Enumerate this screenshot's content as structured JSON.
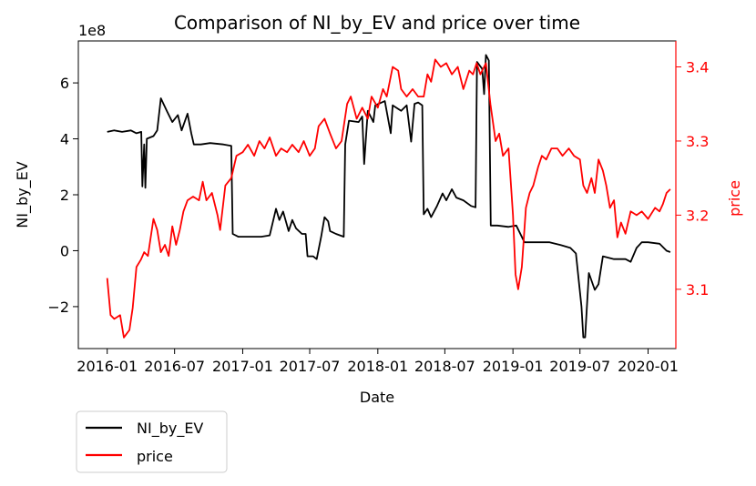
{
  "chart_data": {
    "type": "line",
    "title": "Comparison of NI_by_EV and price over time",
    "xlabel": "Date",
    "ylabel_left": "NI_by_EV",
    "ylabel_right": "price",
    "left_axis_offset_text": "1e8",
    "x_ticks": [
      "2016-01",
      "2016-07",
      "2017-01",
      "2017-07",
      "2018-01",
      "2018-07",
      "2019-01",
      "2019-07",
      "2020-01"
    ],
    "y_left_ticks": [
      "−2",
      "0",
      "2",
      "4",
      "6"
    ],
    "y_right_ticks": [
      "3.1",
      "3.2",
      "3.3",
      "3.4"
    ],
    "xlim": [
      "2015-10-15",
      "2020-03-16"
    ],
    "ylim_left": [
      -3.5,
      7.5
    ],
    "ylim_right": [
      3.02,
      3.435
    ],
    "right_axis_color": "#ff0000",
    "grid": false,
    "legend": {
      "placement": "below-left",
      "entries": [
        "NI_by_EV",
        "price"
      ]
    },
    "series": [
      {
        "name": "NI_by_EV",
        "axis": "left",
        "color": "#000000",
        "points": [
          [
            "2016-01-01",
            4.25
          ],
          [
            "2016-01-20",
            4.3
          ],
          [
            "2016-02-10",
            4.25
          ],
          [
            "2016-03-05",
            4.3
          ],
          [
            "2016-03-20",
            4.2
          ],
          [
            "2016-04-02",
            4.25
          ],
          [
            "2016-04-05",
            2.3
          ],
          [
            "2016-04-10",
            3.8
          ],
          [
            "2016-04-13",
            2.25
          ],
          [
            "2016-04-17",
            4.0
          ],
          [
            "2016-05-05",
            4.1
          ],
          [
            "2016-05-15",
            4.3
          ],
          [
            "2016-05-25",
            5.45
          ],
          [
            "2016-06-10",
            5.0
          ],
          [
            "2016-06-25",
            4.6
          ],
          [
            "2016-07-10",
            4.85
          ],
          [
            "2016-07-20",
            4.3
          ],
          [
            "2016-08-05",
            4.9
          ],
          [
            "2016-08-15",
            4.2
          ],
          [
            "2016-08-22",
            3.8
          ],
          [
            "2016-09-10",
            3.8
          ],
          [
            "2016-10-05",
            3.85
          ],
          [
            "2016-11-10",
            3.8
          ],
          [
            "2016-12-01",
            3.75
          ],
          [
            "2016-12-05",
            0.6
          ],
          [
            "2016-12-20",
            0.5
          ],
          [
            "2017-02-20",
            0.5
          ],
          [
            "2017-03-15",
            0.55
          ],
          [
            "2017-04-01",
            1.5
          ],
          [
            "2017-04-10",
            1.1
          ],
          [
            "2017-04-20",
            1.4
          ],
          [
            "2017-05-05",
            0.7
          ],
          [
            "2017-05-15",
            1.1
          ],
          [
            "2017-05-25",
            0.8
          ],
          [
            "2017-06-10",
            0.6
          ],
          [
            "2017-06-20",
            0.6
          ],
          [
            "2017-06-25",
            -0.2
          ],
          [
            "2017-07-10",
            -0.2
          ],
          [
            "2017-07-20",
            -0.3
          ],
          [
            "2017-08-01",
            0.5
          ],
          [
            "2017-08-10",
            1.2
          ],
          [
            "2017-08-20",
            1.05
          ],
          [
            "2017-08-25",
            0.7
          ],
          [
            "2017-09-10",
            0.6
          ],
          [
            "2017-10-01",
            0.5
          ],
          [
            "2017-10-05",
            3.8
          ],
          [
            "2017-10-15",
            4.65
          ],
          [
            "2017-11-10",
            4.6
          ],
          [
            "2017-11-20",
            4.8
          ],
          [
            "2017-11-25",
            3.1
          ],
          [
            "2017-12-05",
            5.0
          ],
          [
            "2017-12-20",
            4.6
          ],
          [
            "2017-12-25",
            5.2
          ],
          [
            "2018-01-20",
            5.35
          ],
          [
            "2018-02-05",
            4.2
          ],
          [
            "2018-02-10",
            5.2
          ],
          [
            "2018-03-05",
            5.0
          ],
          [
            "2018-03-20",
            5.2
          ],
          [
            "2018-04-01",
            3.9
          ],
          [
            "2018-04-10",
            5.25
          ],
          [
            "2018-04-20",
            5.3
          ],
          [
            "2018-05-01",
            5.2
          ],
          [
            "2018-05-05",
            1.3
          ],
          [
            "2018-05-15",
            1.5
          ],
          [
            "2018-05-25",
            1.2
          ],
          [
            "2018-06-10",
            1.6
          ],
          [
            "2018-06-25",
            2.05
          ],
          [
            "2018-07-05",
            1.8
          ],
          [
            "2018-07-20",
            2.2
          ],
          [
            "2018-08-01",
            1.9
          ],
          [
            "2018-08-20",
            1.8
          ],
          [
            "2018-09-10",
            1.6
          ],
          [
            "2018-09-22",
            1.55
          ],
          [
            "2018-09-26",
            6.75
          ],
          [
            "2018-10-10",
            6.5
          ],
          [
            "2018-10-15",
            5.6
          ],
          [
            "2018-10-20",
            7.0
          ],
          [
            "2018-10-28",
            6.8
          ],
          [
            "2018-11-02",
            0.9
          ],
          [
            "2018-11-20",
            0.9
          ],
          [
            "2018-12-20",
            0.85
          ],
          [
            "2019-01-10",
            0.9
          ],
          [
            "2019-02-01",
            0.3
          ],
          [
            "2019-03-15",
            0.3
          ],
          [
            "2019-04-10",
            0.3
          ],
          [
            "2019-05-10",
            0.2
          ],
          [
            "2019-06-05",
            0.1
          ],
          [
            "2019-06-20",
            -0.1
          ],
          [
            "2019-07-05",
            -2.0
          ],
          [
            "2019-07-10",
            -3.1
          ],
          [
            "2019-07-15",
            -3.1
          ],
          [
            "2019-07-25",
            -0.8
          ],
          [
            "2019-08-10",
            -1.4
          ],
          [
            "2019-08-20",
            -1.2
          ],
          [
            "2019-09-01",
            -0.2
          ],
          [
            "2019-10-01",
            -0.3
          ],
          [
            "2019-11-01",
            -0.3
          ],
          [
            "2019-11-15",
            -0.4
          ],
          [
            "2019-12-01",
            0.1
          ],
          [
            "2019-12-15",
            0.3
          ],
          [
            "2020-01-01",
            0.3
          ],
          [
            "2020-02-01",
            0.25
          ],
          [
            "2020-02-20",
            0.0
          ],
          [
            "2020-03-01",
            -0.05
          ]
        ]
      },
      {
        "name": "price",
        "axis": "right",
        "color": "#ff0000",
        "points": [
          [
            "2016-01-01",
            3.115
          ],
          [
            "2016-01-10",
            3.065
          ],
          [
            "2016-01-20",
            3.06
          ],
          [
            "2016-02-05",
            3.065
          ],
          [
            "2016-02-15",
            3.035
          ],
          [
            "2016-03-01",
            3.045
          ],
          [
            "2016-03-10",
            3.075
          ],
          [
            "2016-03-20",
            3.13
          ],
          [
            "2016-04-01",
            3.14
          ],
          [
            "2016-04-10",
            3.15
          ],
          [
            "2016-04-20",
            3.145
          ],
          [
            "2016-05-05",
            3.195
          ],
          [
            "2016-05-15",
            3.18
          ],
          [
            "2016-05-25",
            3.15
          ],
          [
            "2016-06-05",
            3.16
          ],
          [
            "2016-06-15",
            3.145
          ],
          [
            "2016-06-25",
            3.185
          ],
          [
            "2016-07-05",
            3.16
          ],
          [
            "2016-07-15",
            3.18
          ],
          [
            "2016-07-25",
            3.205
          ],
          [
            "2016-08-05",
            3.22
          ],
          [
            "2016-08-20",
            3.225
          ],
          [
            "2016-09-05",
            3.22
          ],
          [
            "2016-09-15",
            3.245
          ],
          [
            "2016-09-25",
            3.22
          ],
          [
            "2016-10-10",
            3.23
          ],
          [
            "2016-10-25",
            3.2
          ],
          [
            "2016-11-01",
            3.18
          ],
          [
            "2016-11-15",
            3.24
          ],
          [
            "2016-12-01",
            3.25
          ],
          [
            "2016-12-15",
            3.28
          ],
          [
            "2017-01-01",
            3.285
          ],
          [
            "2017-01-15",
            3.295
          ],
          [
            "2017-02-01",
            3.28
          ],
          [
            "2017-02-15",
            3.3
          ],
          [
            "2017-03-01",
            3.29
          ],
          [
            "2017-03-15",
            3.305
          ],
          [
            "2017-04-01",
            3.28
          ],
          [
            "2017-04-15",
            3.29
          ],
          [
            "2017-05-01",
            3.285
          ],
          [
            "2017-05-15",
            3.295
          ],
          [
            "2017-06-01",
            3.285
          ],
          [
            "2017-06-15",
            3.3
          ],
          [
            "2017-07-01",
            3.28
          ],
          [
            "2017-07-15",
            3.29
          ],
          [
            "2017-07-25",
            3.32
          ],
          [
            "2017-08-10",
            3.33
          ],
          [
            "2017-08-25",
            3.31
          ],
          [
            "2017-09-10",
            3.29
          ],
          [
            "2017-09-25",
            3.3
          ],
          [
            "2017-10-10",
            3.35
          ],
          [
            "2017-10-20",
            3.36
          ],
          [
            "2017-11-05",
            3.33
          ],
          [
            "2017-11-20",
            3.345
          ],
          [
            "2017-12-05",
            3.33
          ],
          [
            "2017-12-15",
            3.36
          ],
          [
            "2018-01-01",
            3.345
          ],
          [
            "2018-01-15",
            3.37
          ],
          [
            "2018-01-25",
            3.36
          ],
          [
            "2018-02-10",
            3.4
          ],
          [
            "2018-02-25",
            3.395
          ],
          [
            "2018-03-05",
            3.37
          ],
          [
            "2018-03-20",
            3.36
          ],
          [
            "2018-04-05",
            3.37
          ],
          [
            "2018-04-20",
            3.36
          ],
          [
            "2018-05-05",
            3.36
          ],
          [
            "2018-05-15",
            3.39
          ],
          [
            "2018-05-25",
            3.38
          ],
          [
            "2018-06-05",
            3.41
          ],
          [
            "2018-06-20",
            3.4
          ],
          [
            "2018-07-05",
            3.405
          ],
          [
            "2018-07-20",
            3.39
          ],
          [
            "2018-08-05",
            3.4
          ],
          [
            "2018-08-20",
            3.37
          ],
          [
            "2018-09-05",
            3.395
          ],
          [
            "2018-09-15",
            3.39
          ],
          [
            "2018-09-25",
            3.405
          ],
          [
            "2018-10-05",
            3.39
          ],
          [
            "2018-10-20",
            3.405
          ],
          [
            "2018-11-01",
            3.35
          ],
          [
            "2018-11-15",
            3.3
          ],
          [
            "2018-11-25",
            3.31
          ],
          [
            "2018-12-05",
            3.28
          ],
          [
            "2018-12-20",
            3.29
          ],
          [
            "2019-01-01",
            3.2
          ],
          [
            "2019-01-08",
            3.12
          ],
          [
            "2019-01-15",
            3.1
          ],
          [
            "2019-01-25",
            3.13
          ],
          [
            "2019-02-05",
            3.21
          ],
          [
            "2019-02-15",
            3.23
          ],
          [
            "2019-02-25",
            3.24
          ],
          [
            "2019-03-10",
            3.265
          ],
          [
            "2019-03-20",
            3.28
          ],
          [
            "2019-04-01",
            3.275
          ],
          [
            "2019-04-15",
            3.29
          ],
          [
            "2019-05-01",
            3.29
          ],
          [
            "2019-05-15",
            3.28
          ],
          [
            "2019-06-01",
            3.29
          ],
          [
            "2019-06-15",
            3.28
          ],
          [
            "2019-07-01",
            3.275
          ],
          [
            "2019-07-10",
            3.24
          ],
          [
            "2019-07-20",
            3.23
          ],
          [
            "2019-08-01",
            3.25
          ],
          [
            "2019-08-10",
            3.23
          ],
          [
            "2019-08-20",
            3.275
          ],
          [
            "2019-09-01",
            3.26
          ],
          [
            "2019-09-10",
            3.24
          ],
          [
            "2019-09-20",
            3.21
          ],
          [
            "2019-10-01",
            3.22
          ],
          [
            "2019-10-10",
            3.17
          ],
          [
            "2019-10-20",
            3.19
          ],
          [
            "2019-11-01",
            3.175
          ],
          [
            "2019-11-15",
            3.205
          ],
          [
            "2019-12-01",
            3.2
          ],
          [
            "2019-12-15",
            3.205
          ],
          [
            "2020-01-01",
            3.195
          ],
          [
            "2020-01-20",
            3.21
          ],
          [
            "2020-02-01",
            3.205
          ],
          [
            "2020-02-10",
            3.215
          ],
          [
            "2020-02-20",
            3.23
          ],
          [
            "2020-03-01",
            3.235
          ]
        ]
      }
    ]
  }
}
